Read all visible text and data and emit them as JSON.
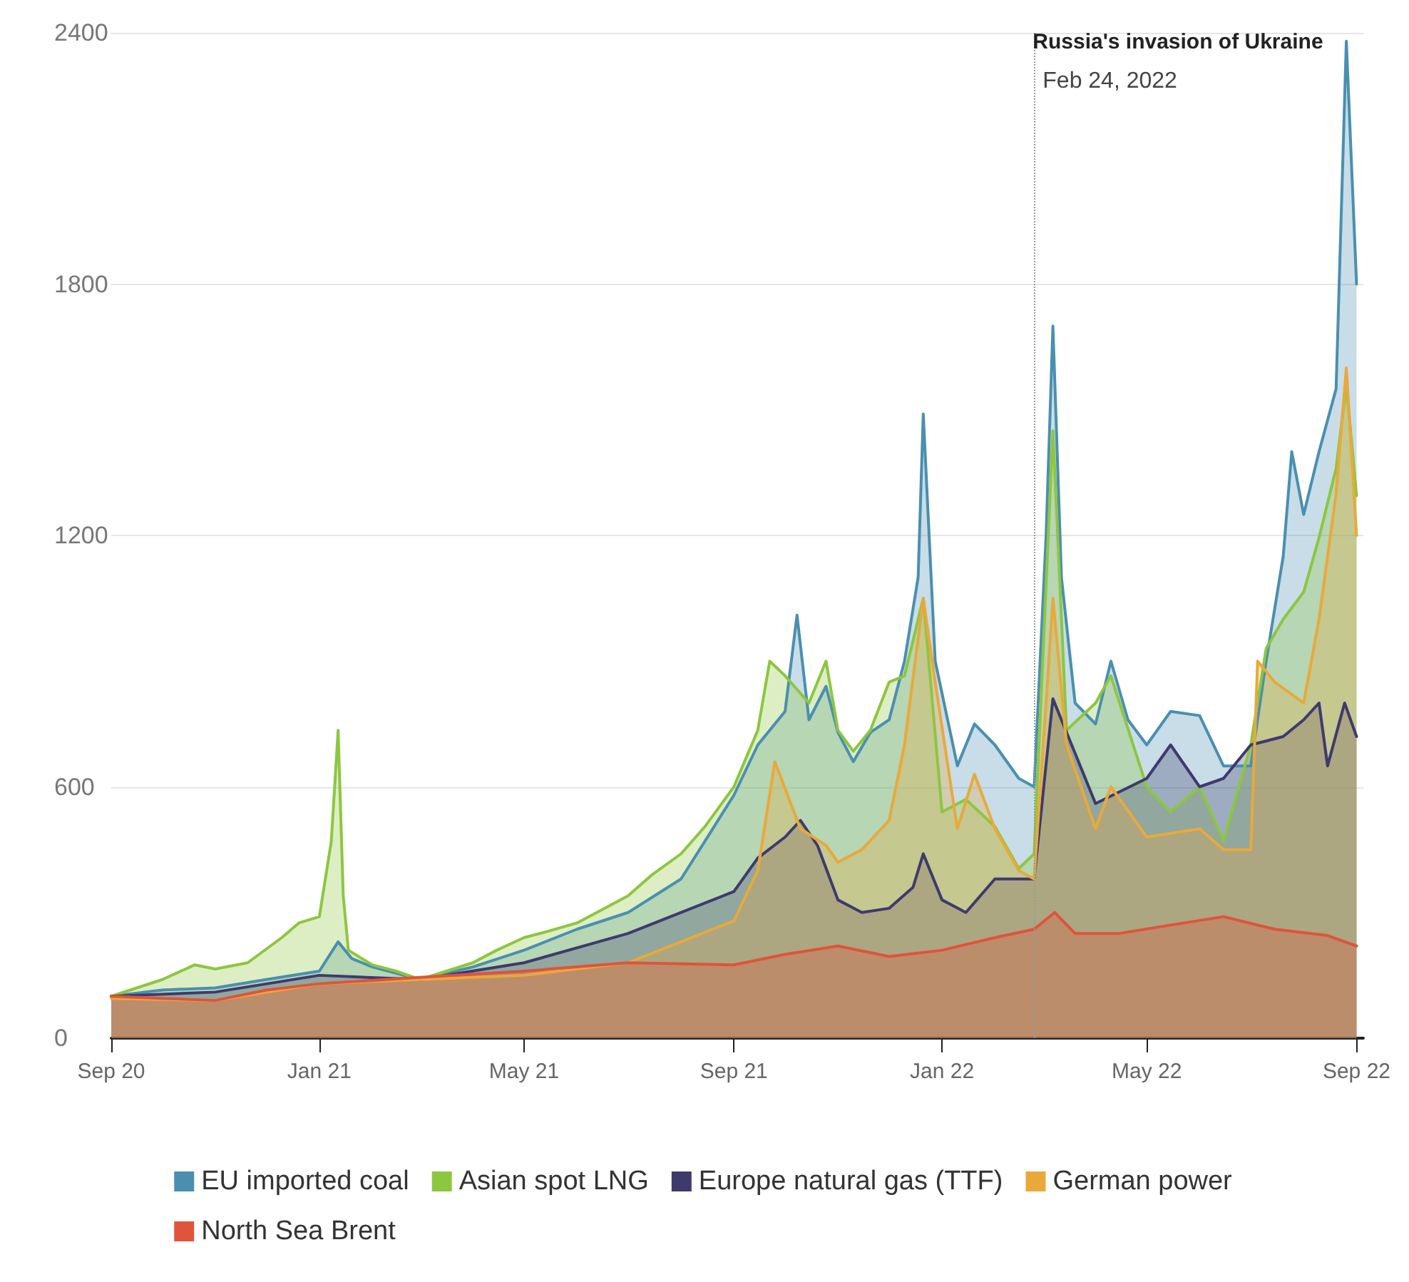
{
  "chart_data": {
    "type": "area",
    "legend": "bottom",
    "grid": "y",
    "marker": "none",
    "line_style": "solid",
    "ylim": [
      0,
      2400
    ],
    "yticks": [
      0,
      600,
      1200,
      1800,
      2400
    ],
    "xlim": [
      "2020-09-01",
      "2022-09-05"
    ],
    "xticks": [
      {
        "value": "2020-09-01",
        "label": "Sep 20"
      },
      {
        "value": "2021-01-01",
        "label": "Jan 21"
      },
      {
        "value": "2021-05-01",
        "label": "May 21"
      },
      {
        "value": "2021-09-01",
        "label": "Sep 21"
      },
      {
        "value": "2022-01-01",
        "label": "Jan 22"
      },
      {
        "value": "2022-05-01",
        "label": "May 22"
      },
      {
        "value": "2022-09-01",
        "label": "Sep 22"
      }
    ],
    "ref_lines": [
      {
        "axis": "x",
        "value": "2022-02-24",
        "label": "Russia's invasion of Ukraine",
        "line_style": "dotted",
        "color": "#999999"
      }
    ],
    "annotations": [
      "Feb 24, 2022"
    ],
    "series": [
      {
        "name": "EU imported coal",
        "color": "#4a8fb0",
        "x": [
          "2020-09-01",
          "2020-10-01",
          "2020-11-01",
          "2020-12-01",
          "2021-01-01",
          "2021-01-12",
          "2021-01-20",
          "2021-02-01",
          "2021-03-01",
          "2021-04-01",
          "2021-05-01",
          "2021-06-01",
          "2021-07-01",
          "2021-08-01",
          "2021-08-15",
          "2021-09-01",
          "2021-09-15",
          "2021-10-01",
          "2021-10-08",
          "2021-10-15",
          "2021-10-25",
          "2021-11-01",
          "2021-11-10",
          "2021-11-20",
          "2021-12-01",
          "2021-12-10",
          "2021-12-18",
          "2021-12-21",
          "2021-12-28",
          "2022-01-10",
          "2022-01-20",
          "2022-02-01",
          "2022-02-15",
          "2022-02-24",
          "2022-03-03",
          "2022-03-07",
          "2022-03-12",
          "2022-03-20",
          "2022-04-01",
          "2022-04-10",
          "2022-04-20",
          "2022-05-01",
          "2022-05-15",
          "2022-06-01",
          "2022-06-15",
          "2022-07-01",
          "2022-07-10",
          "2022-07-20",
          "2022-07-25",
          "2022-08-01",
          "2022-08-10",
          "2022-08-20",
          "2022-08-26",
          "2022-09-01"
        ],
        "values": [
          100,
          115,
          120,
          140,
          160,
          230,
          190,
          170,
          140,
          170,
          210,
          260,
          300,
          380,
          470,
          580,
          700,
          780,
          1010,
          760,
          840,
          730,
          660,
          730,
          760,
          900,
          1100,
          1490,
          900,
          650,
          750,
          700,
          620,
          600,
          1200,
          1700,
          1100,
          800,
          750,
          900,
          760,
          700,
          780,
          770,
          650,
          650,
          900,
          1150,
          1400,
          1250,
          1400,
          1550,
          2380,
          1800
        ]
      },
      {
        "name": "Asian spot LNG",
        "color": "#8dc63f",
        "x": [
          "2020-09-01",
          "2020-10-01",
          "2020-10-20",
          "2020-11-01",
          "2020-11-20",
          "2020-12-10",
          "2020-12-20",
          "2021-01-01",
          "2021-01-08",
          "2021-01-12",
          "2021-01-15",
          "2021-01-18",
          "2021-02-01",
          "2021-02-15",
          "2021-03-01",
          "2021-04-01",
          "2021-04-15",
          "2021-05-01",
          "2021-05-15",
          "2021-06-01",
          "2021-06-15",
          "2021-07-01",
          "2021-07-15",
          "2021-08-01",
          "2021-08-15",
          "2021-09-01",
          "2021-09-15",
          "2021-09-22",
          "2021-10-01",
          "2021-10-15",
          "2021-10-25",
          "2021-11-01",
          "2021-11-10",
          "2021-11-20",
          "2021-12-01",
          "2021-12-10",
          "2021-12-21",
          "2022-01-01",
          "2022-01-15",
          "2022-02-01",
          "2022-02-15",
          "2022-02-24",
          "2022-03-07",
          "2022-03-15",
          "2022-04-01",
          "2022-04-10",
          "2022-05-01",
          "2022-05-15",
          "2022-06-01",
          "2022-06-15",
          "2022-07-01",
          "2022-07-10",
          "2022-07-20",
          "2022-08-01",
          "2022-08-10",
          "2022-08-20",
          "2022-08-26",
          "2022-09-01"
        ],
        "values": [
          100,
          140,
          175,
          165,
          180,
          240,
          275,
          290,
          470,
          735,
          340,
          210,
          175,
          160,
          140,
          180,
          210,
          240,
          255,
          275,
          305,
          340,
          390,
          440,
          505,
          600,
          735,
          900,
          865,
          800,
          900,
          735,
          685,
          735,
          850,
          865,
          1050,
          540,
          570,
          505,
          405,
          440,
          1450,
          735,
          800,
          865,
          600,
          540,
          600,
          470,
          700,
          930,
          1000,
          1065,
          1195,
          1360,
          1560,
          1295
        ]
      },
      {
        "name": "Europe natural gas (TTF)",
        "color": "#3e3a6e",
        "x": [
          "2020-09-01",
          "2020-11-01",
          "2021-01-01",
          "2021-03-01",
          "2021-05-01",
          "2021-07-01",
          "2021-09-01",
          "2021-09-15",
          "2021-10-01",
          "2021-10-10",
          "2021-10-20",
          "2021-11-01",
          "2021-11-15",
          "2021-12-01",
          "2021-12-15",
          "2021-12-21",
          "2022-01-01",
          "2022-01-15",
          "2022-02-01",
          "2022-02-24",
          "2022-03-07",
          "2022-04-01",
          "2022-05-01",
          "2022-05-15",
          "2022-06-01",
          "2022-06-15",
          "2022-07-01",
          "2022-07-20",
          "2022-08-01",
          "2022-08-10",
          "2022-08-15",
          "2022-08-25",
          "2022-09-01"
        ],
        "values": [
          100,
          110,
          150,
          140,
          180,
          250,
          350,
          430,
          480,
          520,
          460,
          330,
          300,
          310,
          360,
          440,
          330,
          300,
          380,
          380,
          810,
          560,
          620,
          700,
          600,
          620,
          700,
          720,
          760,
          800,
          650,
          800,
          720
        ]
      },
      {
        "name": "German power",
        "color": "#e9a93a",
        "x": [
          "2020-09-01",
          "2020-11-01",
          "2021-01-01",
          "2021-03-01",
          "2021-05-01",
          "2021-07-01",
          "2021-09-01",
          "2021-09-15",
          "2021-09-25",
          "2021-10-10",
          "2021-10-25",
          "2021-11-01",
          "2021-11-15",
          "2021-12-01",
          "2021-12-10",
          "2021-12-21",
          "2021-12-28",
          "2022-01-10",
          "2022-01-20",
          "2022-02-01",
          "2022-02-15",
          "2022-02-24",
          "2022-03-03",
          "2022-03-07",
          "2022-03-15",
          "2022-04-01",
          "2022-04-10",
          "2022-05-01",
          "2022-06-01",
          "2022-06-15",
          "2022-07-01",
          "2022-07-05",
          "2022-07-15",
          "2022-08-01",
          "2022-08-10",
          "2022-08-20",
          "2022-08-26",
          "2022-09-01"
        ],
        "values": [
          95,
          90,
          130,
          140,
          150,
          180,
          280,
          400,
          660,
          500,
          460,
          420,
          450,
          520,
          700,
          1050,
          850,
          500,
          630,
          500,
          400,
          380,
          800,
          1050,
          700,
          500,
          600,
          480,
          500,
          450,
          450,
          900,
          850,
          800,
          1000,
          1300,
          1600,
          1200
        ]
      },
      {
        "name": "North Sea Brent",
        "color": "#e0533d",
        "x": [
          "2020-09-01",
          "2020-10-01",
          "2020-11-01",
          "2020-12-01",
          "2021-01-01",
          "2021-03-01",
          "2021-05-01",
          "2021-07-01",
          "2021-09-01",
          "2021-10-01",
          "2021-11-01",
          "2021-12-01",
          "2022-01-01",
          "2022-02-01",
          "2022-02-24",
          "2022-03-08",
          "2022-03-20",
          "2022-04-15",
          "2022-05-15",
          "2022-06-15",
          "2022-07-15",
          "2022-08-15",
          "2022-09-01"
        ],
        "values": [
          100,
          95,
          90,
          115,
          130,
          145,
          160,
          180,
          175,
          200,
          220,
          195,
          210,
          240,
          260,
          300,
          250,
          250,
          270,
          290,
          260,
          245,
          220
        ]
      }
    ]
  }
}
